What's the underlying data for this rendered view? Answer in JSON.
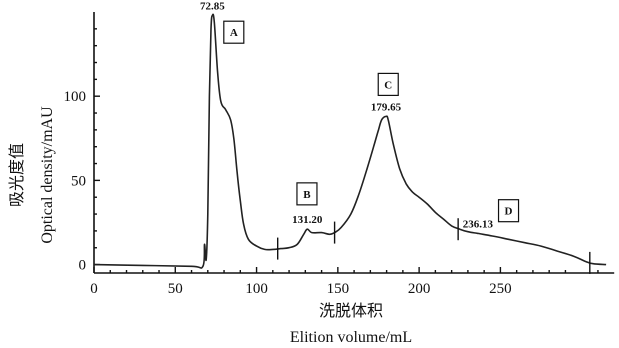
{
  "chart_data": {
    "type": "line",
    "title": "",
    "xlabel_cn": "洗脱体积",
    "xlabel_en": "Elition  volume/mL",
    "ylabel_cn": "吸光度值",
    "ylabel_en": "Optical  density/mAU",
    "xlim": [
      0,
      320
    ],
    "ylim": [
      -5,
      150
    ],
    "x_ticks": [
      0,
      50,
      100,
      150,
      200,
      250
    ],
    "y_ticks": [
      0,
      50,
      100
    ],
    "grid": false,
    "series": [
      {
        "points": [
          [
            0,
            0
          ],
          [
            30,
            -0.5
          ],
          [
            60,
            -1
          ],
          [
            67,
            -1
          ],
          [
            68,
            12
          ],
          [
            69,
            3
          ],
          [
            70,
            30
          ],
          [
            71,
            100
          ],
          [
            72,
            140
          ],
          [
            72.85,
            148
          ],
          [
            74,
            144
          ],
          [
            76,
            115
          ],
          [
            78,
            97
          ],
          [
            81,
            92
          ],
          [
            84,
            86
          ],
          [
            86,
            75
          ],
          [
            88,
            55
          ],
          [
            90,
            38
          ],
          [
            92,
            24
          ],
          [
            95,
            15
          ],
          [
            100,
            11
          ],
          [
            105,
            9
          ],
          [
            110,
            9
          ],
          [
            115,
            9.5
          ],
          [
            120,
            10
          ],
          [
            125,
            12
          ],
          [
            129,
            18
          ],
          [
            131.2,
            21
          ],
          [
            134,
            19
          ],
          [
            140,
            19
          ],
          [
            145,
            18
          ],
          [
            148,
            19
          ],
          [
            152,
            22
          ],
          [
            158,
            30
          ],
          [
            163,
            42
          ],
          [
            168,
            57
          ],
          [
            172,
            70
          ],
          [
            175,
            80
          ],
          [
            177,
            86
          ],
          [
            179.65,
            88
          ],
          [
            181,
            86
          ],
          [
            184,
            72
          ],
          [
            188,
            57
          ],
          [
            192,
            48
          ],
          [
            196,
            43
          ],
          [
            200,
            40
          ],
          [
            205,
            36
          ],
          [
            210,
            31
          ],
          [
            215,
            27
          ],
          [
            220,
            23
          ],
          [
            225,
            21
          ],
          [
            230,
            19.5
          ],
          [
            236.13,
            18.5
          ],
          [
            245,
            17
          ],
          [
            255,
            15
          ],
          [
            265,
            13
          ],
          [
            275,
            11
          ],
          [
            285,
            8
          ],
          [
            295,
            5
          ],
          [
            302,
            2
          ],
          [
            307,
            0.5
          ],
          [
            315,
            0
          ]
        ]
      }
    ],
    "peak_labels": [
      {
        "x": 72.85,
        "y": 148,
        "text": "72.85"
      },
      {
        "x": 131.2,
        "y": 21,
        "text": "131.20"
      },
      {
        "x": 179.65,
        "y": 88,
        "text": "179.65"
      },
      {
        "x": 236.13,
        "y": 18.5,
        "text": "236.13"
      }
    ],
    "fraction_boxes": [
      {
        "x": 86,
        "y": 138,
        "text": "A"
      },
      {
        "x": 131,
        "y": 42,
        "text": "B"
      },
      {
        "x": 181,
        "y": 107,
        "text": "C"
      },
      {
        "x": 255,
        "y": 32,
        "text": "D"
      }
    ],
    "dividers": [
      {
        "x": 113,
        "y": 9.5
      },
      {
        "x": 148,
        "y": 19
      },
      {
        "x": 224,
        "y": 21
      },
      {
        "x": 305,
        "y": 1
      }
    ]
  }
}
